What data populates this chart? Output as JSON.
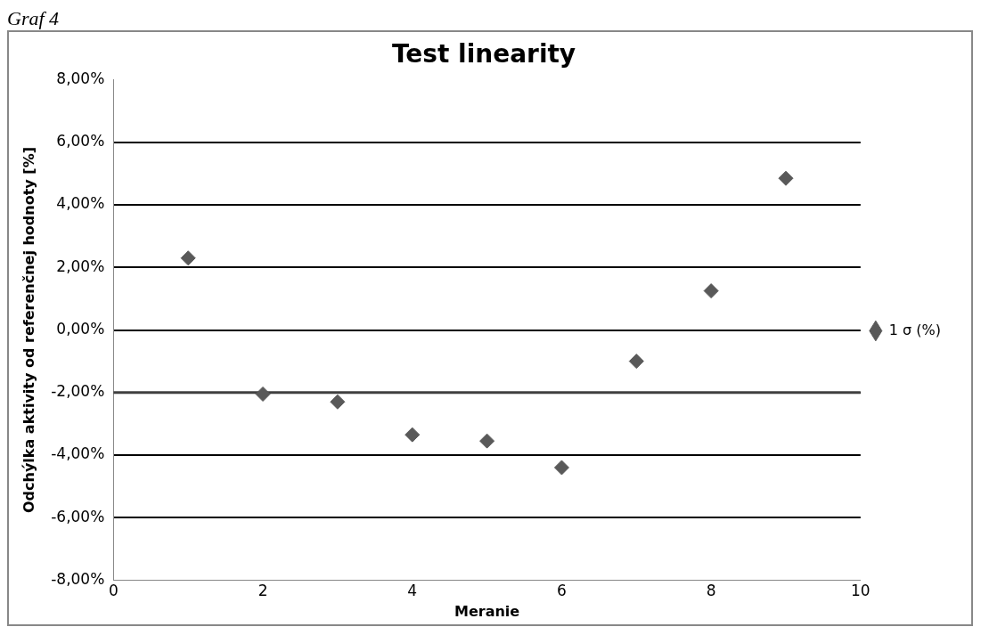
{
  "chart_data": {
    "type": "scatter",
    "title": "Test linearity",
    "xlabel": "Meranie",
    "ylabel": "Odchýlka aktivity od referenčnej hodnoty [%]",
    "annotations": [
      "Graf 4"
    ],
    "x": [
      1,
      2,
      3,
      4,
      5,
      6,
      7,
      8,
      9
    ],
    "series": [
      {
        "name": "1 σ (%)",
        "color": "#595959",
        "values": [
          2.3,
          -2.05,
          -2.3,
          -3.35,
          -3.55,
          -4.4,
          -1.0,
          1.25,
          4.85
        ]
      }
    ],
    "xlim": [
      0,
      10
    ],
    "xticks": [
      0,
      2,
      4,
      6,
      8,
      10
    ],
    "ylim": [
      -8,
      8
    ],
    "yticks": [
      {
        "value": -8,
        "label": "-8,00%"
      },
      {
        "value": -6,
        "label": "-6,00%"
      },
      {
        "value": -4,
        "label": "-4,00%"
      },
      {
        "value": -2,
        "label": "-2,00%"
      },
      {
        "value": 0,
        "label": "0,00%"
      },
      {
        "value": 2,
        "label": "2,00%"
      },
      {
        "value": 4,
        "label": "4,00%"
      },
      {
        "value": 6,
        "label": "6,00%"
      },
      {
        "value": 8,
        "label": "8,00%"
      }
    ],
    "ref_lines": [
      {
        "axis": "y",
        "value": -2,
        "color": "#404040"
      }
    ],
    "grid": "y",
    "legend": "right",
    "marker": "diamond"
  }
}
